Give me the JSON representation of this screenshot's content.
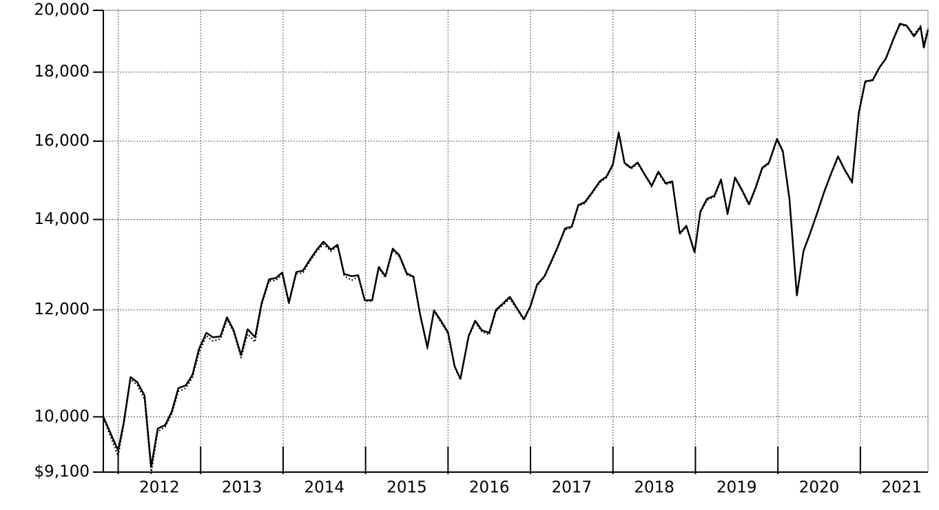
{
  "chart_data": {
    "type": "line",
    "x": [
      2011.82,
      2012.0,
      2012.07,
      2012.15,
      2012.23,
      2012.32,
      2012.4,
      2012.48,
      2012.57,
      2012.65,
      2012.73,
      2012.82,
      2012.9,
      2012.98,
      2013.07,
      2013.15,
      2013.24,
      2013.32,
      2013.4,
      2013.49,
      2013.57,
      2013.66,
      2013.74,
      2013.83,
      2013.91,
      2013.99,
      2014.07,
      2014.16,
      2014.24,
      2014.32,
      2014.41,
      2014.49,
      2014.58,
      2014.66,
      2014.74,
      2014.83,
      2014.91,
      2014.99,
      2015.08,
      2015.16,
      2015.24,
      2015.33,
      2015.41,
      2015.5,
      2015.58,
      2015.66,
      2015.75,
      2015.83,
      2015.91,
      2016.0,
      2016.08,
      2016.15,
      2016.25,
      2016.33,
      2016.41,
      2016.5,
      2016.58,
      2016.66,
      2016.75,
      2016.83,
      2016.92,
      2017.0,
      2017.08,
      2017.17,
      2017.25,
      2017.33,
      2017.42,
      2017.5,
      2017.58,
      2017.66,
      2017.75,
      2017.84,
      2017.92,
      2018.0,
      2018.07,
      2018.14,
      2018.22,
      2018.3,
      2018.39,
      2018.47,
      2018.55,
      2018.64,
      2018.72,
      2018.81,
      2018.89,
      2018.99,
      2019.06,
      2019.14,
      2019.23,
      2019.31,
      2019.39,
      2019.48,
      2019.56,
      2019.65,
      2019.73,
      2019.81,
      2019.89,
      2019.99,
      2020.06,
      2020.14,
      2020.23,
      2020.31,
      2020.39,
      2020.48,
      2020.56,
      2020.65,
      2020.73,
      2020.81,
      2020.9,
      2020.98,
      2021.06,
      2021.15,
      2021.23,
      2021.31,
      2021.4,
      2021.48,
      2021.56,
      2021.65,
      2021.73,
      2021.77,
      2021.82
    ],
    "series": [
      {
        "color": "#000000",
        "style": "solid",
        "values": [
          10000,
          9440,
          9920,
          10700,
          10610,
          10370,
          9180,
          9800,
          9860,
          10090,
          10500,
          10550,
          10740,
          11230,
          11540,
          11450,
          11470,
          11850,
          11590,
          11110,
          11610,
          11450,
          12140,
          12640,
          12670,
          12790,
          12150,
          12800,
          12830,
          13060,
          13300,
          13480,
          13300,
          13410,
          12760,
          12710,
          12730,
          12200,
          12200,
          12910,
          12710,
          13320,
          13170,
          12770,
          12700,
          11920,
          11260,
          11990,
          11790,
          11550,
          10900,
          10670,
          11480,
          11780,
          11590,
          11540,
          12000,
          12120,
          12270,
          12050,
          11810,
          12080,
          12530,
          12710,
          13030,
          13360,
          13790,
          13830,
          14350,
          14420,
          14670,
          14940,
          15060,
          15380,
          16240,
          15420,
          15290,
          15430,
          15100,
          14830,
          15190,
          14890,
          14940,
          13670,
          13850,
          13240,
          14190,
          14500,
          14580,
          14990,
          14140,
          15040,
          14740,
          14370,
          14780,
          15290,
          15420,
          16060,
          15730,
          14500,
          12300,
          13270,
          13670,
          14180,
          14670,
          15170,
          15590,
          15240,
          14920,
          16790,
          17720,
          17760,
          18140,
          18430,
          19040,
          19550,
          19490,
          19130,
          19440,
          18770,
          19350
        ]
      },
      {
        "color": "#000000",
        "style": "dotted",
        "values": [
          9980,
          9350,
          9880,
          10660,
          10560,
          10300,
          9080,
          9750,
          9830,
          10050,
          10440,
          10500,
          10690,
          11150,
          11480,
          11380,
          11420,
          11800,
          11560,
          11060,
          11520,
          11360,
          12100,
          12600,
          12620,
          12740,
          12120,
          12760,
          12780,
          13020,
          13260,
          13420,
          13260,
          13380,
          12720,
          12620,
          12700,
          12180,
          12180,
          12880,
          12680,
          13280,
          13140,
          12740,
          12680,
          11900,
          11230,
          11960,
          11760,
          11520,
          10880,
          10650,
          11450,
          11750,
          11560,
          11500,
          11970,
          12090,
          12230,
          12020,
          11790,
          12060,
          12500,
          12690,
          13000,
          13330,
          13760,
          13800,
          14320,
          14390,
          14640,
          14910,
          15030,
          15350,
          16200,
          15390,
          15260,
          15400,
          15080,
          14800,
          15160,
          14860,
          14910,
          13650,
          13830,
          13220,
          14160,
          14470,
          14550,
          14960,
          14120,
          15010,
          14710,
          14340,
          14750,
          15260,
          15390,
          16030,
          15700,
          14480,
          12290,
          13250,
          13650,
          14160,
          14650,
          15150,
          15570,
          15220,
          14900,
          16770,
          17700,
          17740,
          18120,
          18410,
          19010,
          19500,
          19470,
          19200,
          19480,
          18900,
          19400
        ]
      }
    ],
    "xlim": [
      2011.82,
      2021.82
    ],
    "xticks": [
      {
        "value": 2012,
        "label": "2012"
      },
      {
        "value": 2013,
        "label": "2013"
      },
      {
        "value": 2014,
        "label": "2014"
      },
      {
        "value": 2015,
        "label": "2015"
      },
      {
        "value": 2016,
        "label": "2016"
      },
      {
        "value": 2017,
        "label": "2017"
      },
      {
        "value": 2018,
        "label": "2018"
      },
      {
        "value": 2019,
        "label": "2019"
      },
      {
        "value": 2020,
        "label": "2020"
      },
      {
        "value": 2021,
        "label": "2021"
      }
    ],
    "ylim": [
      9100,
      20000
    ],
    "yticks": [
      {
        "value": 9100,
        "label": "$9,100"
      },
      {
        "value": 10000,
        "label": "10,000"
      },
      {
        "value": 12000,
        "label": "12,000"
      },
      {
        "value": 14000,
        "label": "14,000"
      },
      {
        "value": 16000,
        "label": "16,000"
      },
      {
        "value": 18000,
        "label": "18,000"
      },
      {
        "value": 20000,
        "label": "20,000"
      }
    ],
    "log_y": true,
    "grid": true
  }
}
